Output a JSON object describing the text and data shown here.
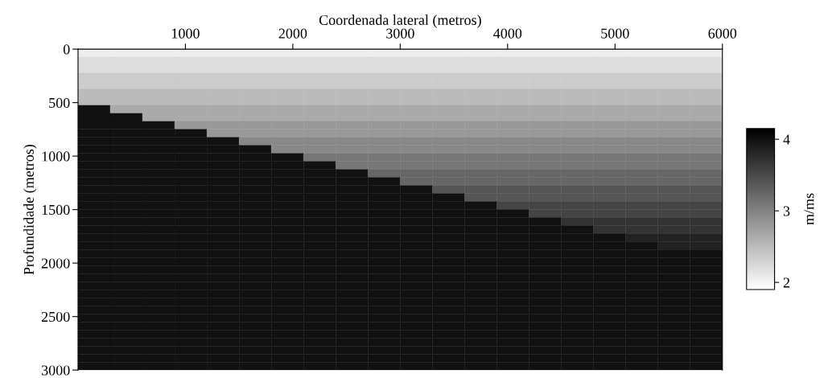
{
  "chart_data": {
    "type": "heatmap",
    "xlabel": "Coordenada lateral (metros)",
    "ylabel": "Profundidade (metros)",
    "clabel": "m/ms",
    "cells": [
      [
        2.05,
        2.05,
        2.05,
        2.05,
        2.05,
        2.05,
        2.05,
        2.05,
        2.05,
        2.05,
        2.05,
        2.05,
        2.05,
        2.05,
        2.05,
        2.05,
        2.05,
        2.05,
        2.05,
        2.05
      ],
      [
        2.2,
        2.2,
        2.2,
        2.2,
        2.2,
        2.2,
        2.2,
        2.2,
        2.2,
        2.2,
        2.2,
        2.2,
        2.2,
        2.2,
        2.2,
        2.2,
        2.2,
        2.2,
        2.2,
        2.2
      ],
      [
        2.2,
        2.2,
        2.2,
        2.2,
        2.2,
        2.2,
        2.2,
        2.2,
        2.2,
        2.2,
        2.2,
        2.2,
        2.2,
        2.2,
        2.2,
        2.2,
        2.2,
        2.2,
        2.2,
        2.2
      ],
      [
        2.35,
        2.35,
        2.35,
        2.35,
        2.35,
        2.35,
        2.35,
        2.35,
        2.35,
        2.35,
        2.35,
        2.35,
        2.35,
        2.35,
        2.35,
        2.35,
        2.35,
        2.35,
        2.35,
        2.35
      ],
      [
        2.35,
        2.35,
        2.35,
        2.35,
        2.35,
        2.35,
        2.35,
        2.35,
        2.35,
        2.35,
        2.35,
        2.35,
        2.35,
        2.35,
        2.35,
        2.35,
        2.35,
        2.35,
        2.35,
        2.35
      ],
      [
        2.5,
        2.5,
        2.5,
        2.5,
        2.5,
        2.5,
        2.5,
        2.5,
        2.5,
        2.5,
        2.5,
        2.5,
        2.5,
        2.5,
        2.5,
        2.5,
        2.5,
        2.5,
        2.5,
        2.5
      ],
      [
        2.5,
        2.5,
        2.5,
        2.5,
        2.5,
        2.5,
        2.5,
        2.5,
        2.5,
        2.5,
        2.5,
        2.5,
        2.5,
        2.5,
        2.5,
        2.5,
        2.5,
        2.5,
        2.5,
        2.5
      ],
      [
        4,
        2.65,
        2.65,
        2.65,
        2.65,
        2.65,
        2.65,
        2.65,
        2.65,
        2.65,
        2.65,
        2.65,
        2.65,
        2.65,
        2.65,
        2.65,
        2.65,
        2.65,
        2.65,
        2.65
      ],
      [
        4,
        4,
        2.65,
        2.65,
        2.65,
        2.65,
        2.65,
        2.65,
        2.65,
        2.65,
        2.65,
        2.65,
        2.65,
        2.65,
        2.65,
        2.65,
        2.65,
        2.65,
        2.65,
        2.65
      ],
      [
        4,
        4,
        4,
        2.8,
        2.8,
        2.8,
        2.8,
        2.8,
        2.8,
        2.8,
        2.8,
        2.8,
        2.8,
        2.8,
        2.8,
        2.8,
        2.8,
        2.8,
        2.8,
        2.8
      ],
      [
        4,
        4,
        4,
        4,
        2.8,
        2.8,
        2.8,
        2.8,
        2.8,
        2.8,
        2.8,
        2.8,
        2.8,
        2.8,
        2.8,
        2.8,
        2.8,
        2.8,
        2.8,
        2.8
      ],
      [
        4,
        4,
        4,
        4,
        4,
        2.95,
        2.95,
        2.95,
        2.95,
        2.95,
        2.95,
        2.95,
        2.95,
        2.95,
        2.95,
        2.95,
        2.95,
        2.95,
        2.95,
        2.95
      ],
      [
        4,
        4,
        4,
        4,
        4,
        4,
        2.95,
        2.95,
        2.95,
        2.95,
        2.95,
        2.95,
        2.95,
        2.95,
        2.95,
        2.95,
        2.95,
        2.95,
        2.95,
        2.95
      ],
      [
        4,
        4,
        4,
        4,
        4,
        4,
        4,
        3.1,
        3.1,
        3.1,
        3.1,
        3.1,
        3.1,
        3.1,
        3.1,
        3.1,
        3.1,
        3.1,
        3.1,
        3.1
      ],
      [
        4,
        4,
        4,
        4,
        4,
        4,
        4,
        4,
        3.1,
        3.1,
        3.1,
        3.1,
        3.1,
        3.1,
        3.1,
        3.1,
        3.1,
        3.1,
        3.1,
        3.1
      ],
      [
        4,
        4,
        4,
        4,
        4,
        4,
        4,
        4,
        4,
        3.25,
        3.25,
        3.25,
        3.25,
        3.25,
        3.25,
        3.25,
        3.25,
        3.25,
        3.25,
        3.25
      ],
      [
        4,
        4,
        4,
        4,
        4,
        4,
        4,
        4,
        4,
        4,
        3.25,
        3.25,
        3.25,
        3.25,
        3.25,
        3.25,
        3.25,
        3.25,
        3.25,
        3.25
      ],
      [
        4,
        4,
        4,
        4,
        4,
        4,
        4,
        4,
        4,
        4,
        4,
        3.4,
        3.4,
        3.4,
        3.4,
        3.4,
        3.4,
        3.4,
        3.4,
        3.4
      ],
      [
        4,
        4,
        4,
        4,
        4,
        4,
        4,
        4,
        4,
        4,
        4,
        4,
        3.4,
        3.4,
        3.4,
        3.4,
        3.4,
        3.4,
        3.4,
        3.4
      ],
      [
        4,
        4,
        4,
        4,
        4,
        4,
        4,
        4,
        4,
        4,
        4,
        4,
        4,
        3.55,
        3.55,
        3.55,
        3.55,
        3.55,
        3.55,
        3.55
      ],
      [
        4,
        4,
        4,
        4,
        4,
        4,
        4,
        4,
        4,
        4,
        4,
        4,
        4,
        4,
        3.55,
        3.55,
        3.55,
        3.55,
        3.55,
        3.55
      ],
      [
        4,
        4,
        4,
        4,
        4,
        4,
        4,
        4,
        4,
        4,
        4,
        4,
        4,
        4,
        4,
        3.7,
        3.7,
        3.7,
        3.7,
        3.7
      ],
      [
        4,
        4,
        4,
        4,
        4,
        4,
        4,
        4,
        4,
        4,
        4,
        4,
        4,
        4,
        4,
        4,
        3.7,
        3.7,
        3.7,
        3.7
      ],
      [
        4,
        4,
        4,
        4,
        4,
        4,
        4,
        4,
        4,
        4,
        4,
        4,
        4,
        4,
        4,
        4,
        4,
        3.85,
        3.85,
        3.85
      ],
      [
        4,
        4,
        4,
        4,
        4,
        4,
        4,
        4,
        4,
        4,
        4,
        4,
        4,
        4,
        4,
        4,
        4,
        4,
        3.85,
        3.85
      ],
      [
        4,
        4,
        4,
        4,
        4,
        4,
        4,
        4,
        4,
        4,
        4,
        4,
        4,
        4,
        4,
        4,
        4,
        4,
        4,
        4
      ],
      [
        4,
        4,
        4,
        4,
        4,
        4,
        4,
        4,
        4,
        4,
        4,
        4,
        4,
        4,
        4,
        4,
        4,
        4,
        4,
        4
      ],
      [
        4,
        4,
        4,
        4,
        4,
        4,
        4,
        4,
        4,
        4,
        4,
        4,
        4,
        4,
        4,
        4,
        4,
        4,
        4,
        4
      ],
      [
        4,
        4,
        4,
        4,
        4,
        4,
        4,
        4,
        4,
        4,
        4,
        4,
        4,
        4,
        4,
        4,
        4,
        4,
        4,
        4
      ],
      [
        4,
        4,
        4,
        4,
        4,
        4,
        4,
        4,
        4,
        4,
        4,
        4,
        4,
        4,
        4,
        4,
        4,
        4,
        4,
        4
      ],
      [
        4,
        4,
        4,
        4,
        4,
        4,
        4,
        4,
        4,
        4,
        4,
        4,
        4,
        4,
        4,
        4,
        4,
        4,
        4,
        4
      ],
      [
        4,
        4,
        4,
        4,
        4,
        4,
        4,
        4,
        4,
        4,
        4,
        4,
        4,
        4,
        4,
        4,
        4,
        4,
        4,
        4
      ],
      [
        4,
        4,
        4,
        4,
        4,
        4,
        4,
        4,
        4,
        4,
        4,
        4,
        4,
        4,
        4,
        4,
        4,
        4,
        4,
        4
      ],
      [
        4,
        4,
        4,
        4,
        4,
        4,
        4,
        4,
        4,
        4,
        4,
        4,
        4,
        4,
        4,
        4,
        4,
        4,
        4,
        4
      ],
      [
        4,
        4,
        4,
        4,
        4,
        4,
        4,
        4,
        4,
        4,
        4,
        4,
        4,
        4,
        4,
        4,
        4,
        4,
        4,
        4
      ],
      [
        4,
        4,
        4,
        4,
        4,
        4,
        4,
        4,
        4,
        4,
        4,
        4,
        4,
        4,
        4,
        4,
        4,
        4,
        4,
        4
      ],
      [
        4,
        4,
        4,
        4,
        4,
        4,
        4,
        4,
        4,
        4,
        4,
        4,
        4,
        4,
        4,
        4,
        4,
        4,
        4,
        4
      ],
      [
        4,
        4,
        4,
        4,
        4,
        4,
        4,
        4,
        4,
        4,
        4,
        4,
        4,
        4,
        4,
        4,
        4,
        4,
        4,
        4
      ],
      [
        4,
        4,
        4,
        4,
        4,
        4,
        4,
        4,
        4,
        4,
        4,
        4,
        4,
        4,
        4,
        4,
        4,
        4,
        4,
        4
      ],
      [
        4,
        4,
        4,
        4,
        4,
        4,
        4,
        4,
        4,
        4,
        4,
        4,
        4,
        4,
        4,
        4,
        4,
        4,
        4,
        4
      ]
    ],
    "xlim": [
      0,
      6000
    ],
    "xticks": [
      1000,
      2000,
      3000,
      4000,
      5000,
      6000
    ],
    "ylim": [
      3000,
      0
    ],
    "yticks": [
      0,
      500,
      1000,
      1500,
      2000,
      2500,
      3000
    ],
    "clim": [
      1.9,
      4.15
    ],
    "cticks": [
      2,
      3,
      4
    ],
    "grid": false
  }
}
